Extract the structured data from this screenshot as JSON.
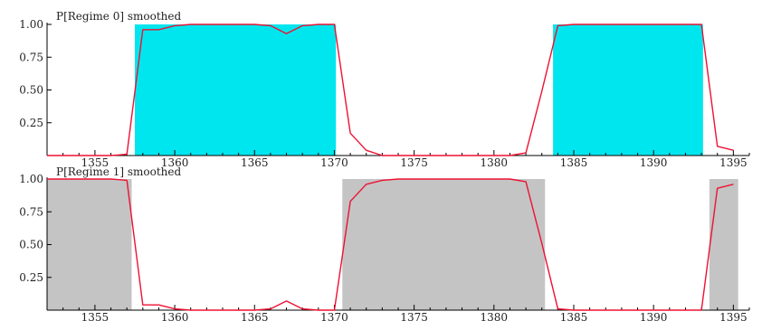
{
  "chart_data": [
    {
      "type": "area",
      "title": "P[Regime 0] smoothed",
      "shade_color": "#00e6ee",
      "line_color": "#ee1133",
      "xlim": [
        1352,
        1396
      ],
      "ylim": [
        0,
        1.0
      ],
      "xticks": [
        1355,
        1360,
        1365,
        1370,
        1375,
        1380,
        1385,
        1390,
        1395
      ],
      "yticks": [
        0.25,
        0.5,
        0.75,
        1.0
      ],
      "ytick_labels": [
        "0.25",
        "0.50",
        "0.75",
        "1.00"
      ],
      "shaded_spans": [
        [
          1357.5,
          1370.1
        ],
        [
          1383.7,
          1393.1
        ]
      ],
      "series": [
        {
          "x": [
            1352,
            1353,
            1354,
            1355,
            1356,
            1357,
            1358,
            1359,
            1360,
            1361,
            1362,
            1363,
            1364,
            1365,
            1366,
            1367,
            1368,
            1369,
            1370,
            1371,
            1372,
            1373,
            1374,
            1375,
            1376,
            1377,
            1378,
            1379,
            1380,
            1381,
            1382,
            1383,
            1384,
            1385,
            1386,
            1387,
            1388,
            1389,
            1390,
            1391,
            1392,
            1393,
            1394,
            1395
          ],
          "values": [
            0,
            0,
            0,
            0,
            0,
            0.01,
            0.96,
            0.96,
            0.99,
            1.0,
            1.0,
            1.0,
            1.0,
            1.0,
            0.99,
            0.93,
            0.99,
            1.0,
            1.0,
            0.17,
            0.04,
            0.0,
            0.0,
            0.0,
            0.0,
            0.0,
            0.0,
            0.0,
            0.0,
            0.0,
            0.02,
            0.49,
            0.99,
            1.0,
            1.0,
            1.0,
            1.0,
            1.0,
            1.0,
            1.0,
            1.0,
            1.0,
            0.07,
            0.04
          ]
        }
      ]
    },
    {
      "type": "area",
      "title": "P[Regime 1] smoothed",
      "shade_color": "#c4c4c4",
      "line_color": "#ee1133",
      "xlim": [
        1352,
        1396
      ],
      "ylim": [
        0,
        1.0
      ],
      "xticks": [
        1355,
        1360,
        1365,
        1370,
        1375,
        1380,
        1385,
        1390,
        1395
      ],
      "yticks": [
        0.25,
        0.5,
        0.75,
        1.0
      ],
      "ytick_labels": [
        "0.25",
        "0.50",
        "0.75",
        "1.00"
      ],
      "shaded_spans": [
        [
          1352,
          1357.3
        ],
        [
          1370.5,
          1383.2
        ],
        [
          1393.5,
          1395.3
        ]
      ],
      "series": [
        {
          "x": [
            1352,
            1353,
            1354,
            1355,
            1356,
            1357,
            1358,
            1359,
            1360,
            1361,
            1362,
            1363,
            1364,
            1365,
            1366,
            1367,
            1368,
            1369,
            1370,
            1371,
            1372,
            1373,
            1374,
            1375,
            1376,
            1377,
            1378,
            1379,
            1380,
            1381,
            1382,
            1383,
            1384,
            1385,
            1386,
            1387,
            1388,
            1389,
            1390,
            1391,
            1392,
            1393,
            1394,
            1395
          ],
          "values": [
            1.0,
            1.0,
            1.0,
            1.0,
            1.0,
            0.99,
            0.04,
            0.04,
            0.01,
            0.0,
            0.0,
            0.0,
            0.0,
            0.0,
            0.01,
            0.07,
            0.01,
            0.0,
            0.0,
            0.83,
            0.96,
            0.99,
            1.0,
            1.0,
            1.0,
            1.0,
            1.0,
            1.0,
            1.0,
            1.0,
            0.98,
            0.51,
            0.01,
            0.0,
            0.0,
            0.0,
            0.0,
            0.0,
            0.0,
            0.0,
            0.0,
            0.0,
            0.93,
            0.96
          ]
        }
      ]
    }
  ]
}
